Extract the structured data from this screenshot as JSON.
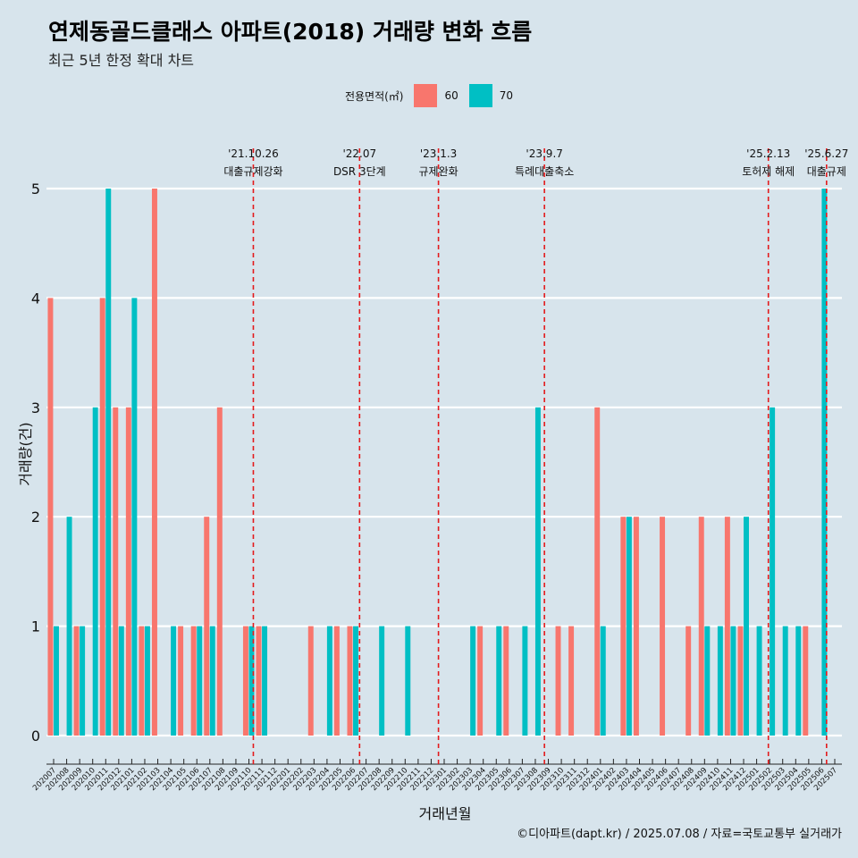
{
  "title": "연제동골드클래스 아파트(2018) 거래량 변화 흐름",
  "subtitle": "최근 5년 한정 확대 차트",
  "caption": "©디아파트(dapt.kr) / 2025.07.08 / 자료=국토교통부 실거래가",
  "colors": {
    "s60": "#f8766d",
    "s70": "#00bfc4",
    "grid": "#ffffff",
    "vline": "#e31a1c",
    "bg": "#d7e4ec"
  },
  "chart_data": {
    "type": "bar",
    "title": "연제동골드클래스 아파트(2018) 거래량 변화 흐름",
    "xlabel": "거래년월",
    "ylabel": "거래량(건)",
    "ylim": [
      0,
      5
    ],
    "yticks": [
      "0",
      "1",
      "2",
      "3",
      "4",
      "5"
    ],
    "legend_title": "전용면적(㎡)",
    "categories": [
      "202007",
      "202008",
      "202009",
      "202010",
      "202011",
      "202012",
      "202101",
      "202102",
      "202103",
      "202104",
      "202105",
      "202106",
      "202107",
      "202108",
      "202109",
      "202110",
      "202111",
      "202112",
      "202201",
      "202202",
      "202203",
      "202204",
      "202205",
      "202206",
      "202207",
      "202208",
      "202209",
      "202210",
      "202211",
      "202212",
      "202301",
      "202302",
      "202303",
      "202304",
      "202305",
      "202306",
      "202307",
      "202308",
      "202309",
      "202310",
      "202311",
      "202312",
      "202401",
      "202402",
      "202403",
      "202404",
      "202405",
      "202406",
      "202407",
      "202408",
      "202409",
      "202410",
      "202411",
      "202412",
      "202501",
      "202502",
      "202503",
      "202504",
      "202505",
      "202506",
      "202507"
    ],
    "series": [
      {
        "name": "60",
        "values": [
          4,
          0,
          1,
          0,
          4,
          3,
          3,
          1,
          5,
          0,
          1,
          1,
          2,
          3,
          0,
          1,
          1,
          0,
          0,
          0,
          1,
          0,
          1,
          1,
          0,
          0,
          0,
          0,
          0,
          0,
          0,
          0,
          0,
          1,
          0,
          1,
          0,
          0,
          0,
          1,
          1,
          0,
          3,
          0,
          2,
          2,
          0,
          2,
          0,
          1,
          2,
          0,
          2,
          1,
          0,
          0,
          0,
          0,
          1,
          0,
          0
        ]
      },
      {
        "name": "70",
        "values": [
          1,
          2,
          1,
          3,
          5,
          1,
          4,
          1,
          0,
          1,
          0,
          1,
          1,
          0,
          0,
          1,
          1,
          0,
          0,
          0,
          0,
          1,
          0,
          1,
          0,
          1,
          0,
          1,
          0,
          0,
          0,
          0,
          1,
          0,
          1,
          0,
          1,
          3,
          0,
          0,
          0,
          0,
          1,
          0,
          2,
          0,
          0,
          0,
          0,
          0,
          1,
          1,
          1,
          2,
          1,
          3,
          1,
          1,
          0,
          5,
          0
        ]
      }
    ],
    "annotations": [
      {
        "date": "'21.10.26",
        "label": "대출규제강화",
        "at": "202110",
        "frac": 0.84
      },
      {
        "date": "'22.07",
        "label": "DSR 3단계",
        "at": "202207",
        "frac": 0.0
      },
      {
        "date": "'23.1.3",
        "label": "규제완화",
        "at": "202301",
        "frac": 0.06
      },
      {
        "date": "'23.9.7",
        "label": "특례대출축소",
        "at": "202309",
        "frac": 0.2
      },
      {
        "date": "'25.2.13",
        "label": "토허제 해제",
        "at": "202502",
        "frac": 0.4
      },
      {
        "date": "'25.6.27",
        "label": "대출규제",
        "at": "202506",
        "frac": 0.87
      }
    ]
  }
}
